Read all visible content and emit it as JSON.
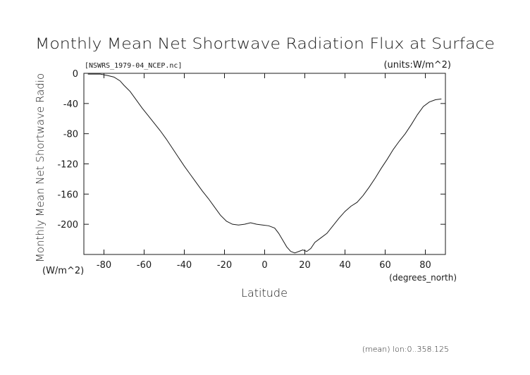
{
  "chart_data": {
    "type": "line",
    "title": "Monthly Mean Net Shortwave Radiation Flux at Surface",
    "subtitle_left": "[NSWRS_1979-04_NCEP.nc]",
    "subtitle_right": "(units:W/m^2)",
    "ylabel": "Monthly Mean Net Shortwave Radio",
    "ylabel_units": "(W/m^2)",
    "xlabel": "Latitude",
    "xlabel_units": "(degrees_north)",
    "footnote": "(mean) lon:0..358.125",
    "xlim": [
      -90,
      90
    ],
    "ylim": [
      -240,
      0
    ],
    "xticks": [
      -80,
      -60,
      -40,
      -20,
      0,
      20,
      40,
      60,
      80
    ],
    "yticks": [
      0,
      -40,
      -80,
      -120,
      -160,
      -200
    ],
    "series": [
      {
        "x": [
          -88,
          -85,
          -82,
          -80,
          -78,
          -75,
          -72,
          -70,
          -67,
          -64,
          -61,
          -58,
          -55,
          -52,
          -49,
          -46,
          -43,
          -40,
          -37,
          -34,
          -31,
          -28,
          -25,
          -22,
          -19,
          -16,
          -13,
          -10,
          -7,
          -4,
          -1,
          2,
          5,
          7,
          9,
          11,
          13,
          15,
          17,
          19,
          21,
          23,
          25,
          28,
          31,
          34,
          37,
          40,
          43,
          46,
          49,
          52,
          55,
          58,
          61,
          64,
          67,
          70,
          73,
          76,
          79,
          82,
          85,
          88
        ],
        "y": [
          -1,
          -1,
          -1,
          -2,
          -3,
          -5,
          -10,
          -16,
          -24,
          -35,
          -46,
          -56,
          -66,
          -76,
          -87,
          -99,
          -111,
          -123,
          -134,
          -145,
          -156,
          -166,
          -177,
          -188,
          -196,
          -200,
          -201,
          -200,
          -198,
          -200,
          -201,
          -202,
          -205,
          -212,
          -221,
          -230,
          -236,
          -238,
          -236,
          -234,
          -236,
          -232,
          -224,
          -218,
          -212,
          -202,
          -192,
          -183,
          -176,
          -171,
          -162,
          -151,
          -139,
          -126,
          -114,
          -101,
          -90,
          -80,
          -68,
          -55,
          -44,
          -38,
          -35,
          -34
        ]
      }
    ]
  }
}
